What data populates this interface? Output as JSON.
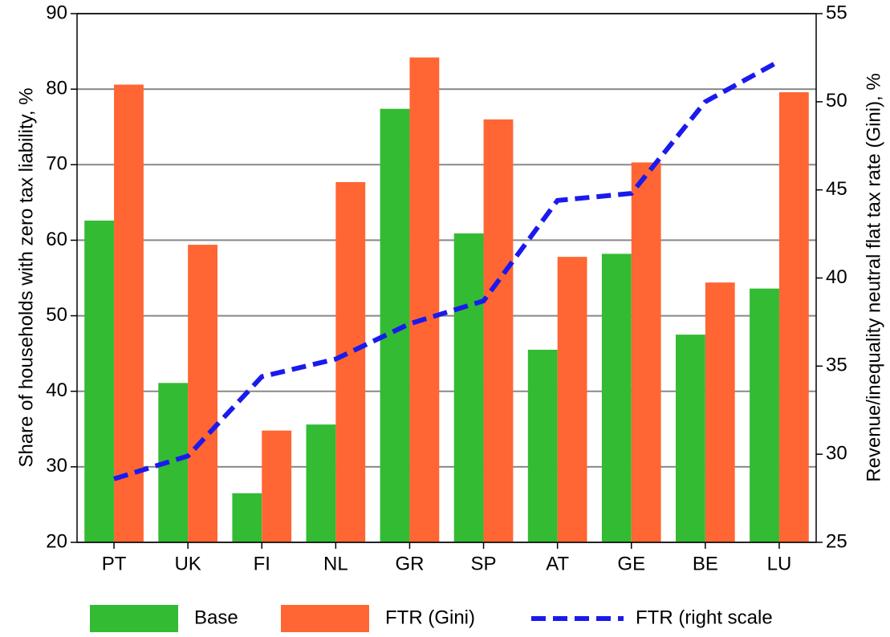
{
  "chart_data": {
    "type": "bar",
    "ylabel": "Share of households with zero tax liability, %",
    "y2label": "Revenue/inequality neutral flat tax rate (Gini), %",
    "categories": [
      "PT",
      "UK",
      "FI",
      "NL",
      "GR",
      "SP",
      "AT",
      "GE",
      "BE",
      "LU"
    ],
    "series": [
      {
        "name": "Base",
        "type": "bar",
        "color": "#33bb33",
        "values": [
          62.6,
          41.1,
          26.5,
          35.6,
          77.4,
          60.9,
          45.5,
          58.2,
          47.5,
          53.6
        ]
      },
      {
        "name": "FTR (Gini)",
        "type": "bar",
        "color": "#ff6633",
        "values": [
          80.6,
          59.4,
          34.8,
          67.7,
          84.2,
          76.0,
          57.8,
          70.3,
          54.4,
          79.6
        ]
      },
      {
        "name": "FTR (right scale",
        "type": "line",
        "axis": "y2",
        "color": "#1a1aee",
        "dashed": true,
        "values": [
          28.6,
          29.9,
          34.4,
          35.4,
          37.4,
          38.7,
          44.4,
          44.8,
          50.0,
          52.3
        ]
      }
    ],
    "ylim": [
      20,
      90
    ],
    "yticks": [
      20,
      30,
      40,
      50,
      60,
      70,
      80,
      90
    ],
    "y2lim": [
      25,
      55
    ],
    "y2ticks": [
      25,
      30,
      35,
      40,
      45,
      50,
      55
    ],
    "grid": true,
    "legend": "bottom"
  }
}
